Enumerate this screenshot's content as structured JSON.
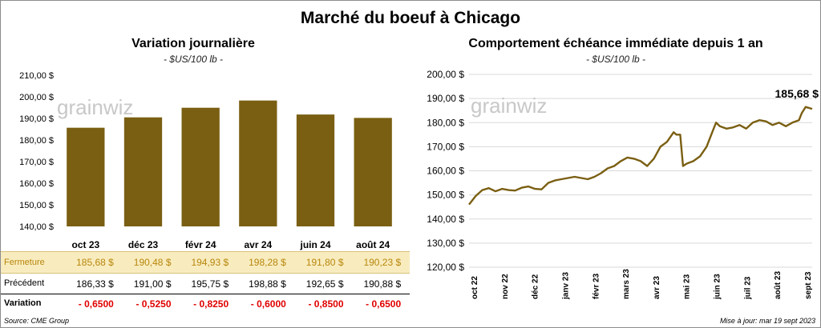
{
  "title": "Marché du boeuf à Chicago",
  "footer": {
    "source": "Source: CME Group",
    "updated": "Mise à jour: mar 19 sept 2023"
  },
  "watermark": "grainwiz",
  "colors": {
    "bar": "#7a5f12",
    "line": "#7a5f12",
    "highlight_bg": "#f8ecbf",
    "negative": "#e00000",
    "grid": "#d9d9d9"
  },
  "chart_data": [
    {
      "type": "bar",
      "title": "Variation journalière",
      "subtitle": "- $US/100 lb -",
      "categories": [
        "oct 23",
        "déc 23",
        "févr 24",
        "avr 24",
        "juin 24",
        "août 24"
      ],
      "values": [
        185.68,
        190.48,
        194.93,
        198.28,
        191.8,
        190.23
      ],
      "ylim": [
        140,
        210
      ],
      "yticks": [
        "140,00 $",
        "150,00 $",
        "160,00 $",
        "170,00 $",
        "180,00 $",
        "190,00 $",
        "200,00 $",
        "210,00 $"
      ],
      "yticks_values": [
        140,
        150,
        160,
        170,
        180,
        190,
        200,
        210
      ],
      "grid": false
    },
    {
      "type": "line",
      "title": "Comportement  échéance immédiate depuis 1 an",
      "subtitle": "- $US/100 lb -",
      "ylim": [
        120,
        200
      ],
      "yticks": [
        "120,00 $",
        "130,00 $",
        "140,00 $",
        "150,00 $",
        "160,00 $",
        "170,00 $",
        "180,00 $",
        "190,00 $",
        "200,00 $"
      ],
      "yticks_values": [
        120,
        130,
        140,
        150,
        160,
        170,
        180,
        190,
        200
      ],
      "xticks": [
        "oct 22",
        "nov 22",
        "déc 22",
        "janv 23",
        "févr 23",
        "mars 23",
        "avr 23",
        "mai 23",
        "juin 23",
        "juil 23",
        "août 23",
        "sept 23"
      ],
      "last_label": "185,68 $",
      "grid": true,
      "x": [
        "2022-09-20",
        "2022-09-27",
        "2022-10-04",
        "2022-10-11",
        "2022-10-18",
        "2022-10-25",
        "2022-11-01",
        "2022-11-08",
        "2022-11-15",
        "2022-11-22",
        "2022-11-29",
        "2022-12-06",
        "2022-12-13",
        "2022-12-20",
        "2022-12-27",
        "2023-01-03",
        "2023-01-10",
        "2023-01-17",
        "2023-01-24",
        "2023-01-31",
        "2023-02-07",
        "2023-02-14",
        "2023-02-21",
        "2023-02-28",
        "2023-03-07",
        "2023-03-14",
        "2023-03-21",
        "2023-03-28",
        "2023-04-04",
        "2023-04-11",
        "2023-04-18",
        "2023-04-25",
        "2023-04-28",
        "2023-05-02",
        "2023-05-05",
        "2023-05-09",
        "2023-05-16",
        "2023-05-23",
        "2023-05-30",
        "2023-06-06",
        "2023-06-09",
        "2023-06-13",
        "2023-06-20",
        "2023-06-27",
        "2023-07-04",
        "2023-07-11",
        "2023-07-18",
        "2023-07-25",
        "2023-08-01",
        "2023-08-08",
        "2023-08-15",
        "2023-08-22",
        "2023-08-29",
        "2023-09-05",
        "2023-09-08",
        "2023-09-12",
        "2023-09-19"
      ],
      "values": [
        146.0,
        149.5,
        152.0,
        152.8,
        151.5,
        152.5,
        152.0,
        151.8,
        153.0,
        153.5,
        152.5,
        152.3,
        155.0,
        156.0,
        156.5,
        157.0,
        157.5,
        157.0,
        156.5,
        157.5,
        159.0,
        161.0,
        162.0,
        164.0,
        165.5,
        165.0,
        164.0,
        162.0,
        165.0,
        170.0,
        172.0,
        176.0,
        175.0,
        175.0,
        162.0,
        163.0,
        164.0,
        166.0,
        170.0,
        177.0,
        180.0,
        178.5,
        177.5,
        178.0,
        179.0,
        177.5,
        180.0,
        181.0,
        180.5,
        179.0,
        180.0,
        178.5,
        180.0,
        181.0,
        184.0,
        186.5,
        185.68
      ]
    }
  ],
  "table": {
    "rows": [
      {
        "label": "Fermeture",
        "values": [
          "185,68  $",
          "190,48  $",
          "194,93  $",
          "198,28  $",
          "191,80  $",
          "190,23  $"
        ]
      },
      {
        "label": "Précédent",
        "values": [
          "186,33  $",
          "191,00  $",
          "195,75  $",
          "198,88  $",
          "192,65  $",
          "190,88  $"
        ]
      },
      {
        "label": "Variation",
        "values": [
          "- 0,6500",
          "- 0,5250",
          "- 0,8250",
          "- 0,6000",
          "- 0,8500",
          "- 0,6500"
        ]
      }
    ]
  }
}
